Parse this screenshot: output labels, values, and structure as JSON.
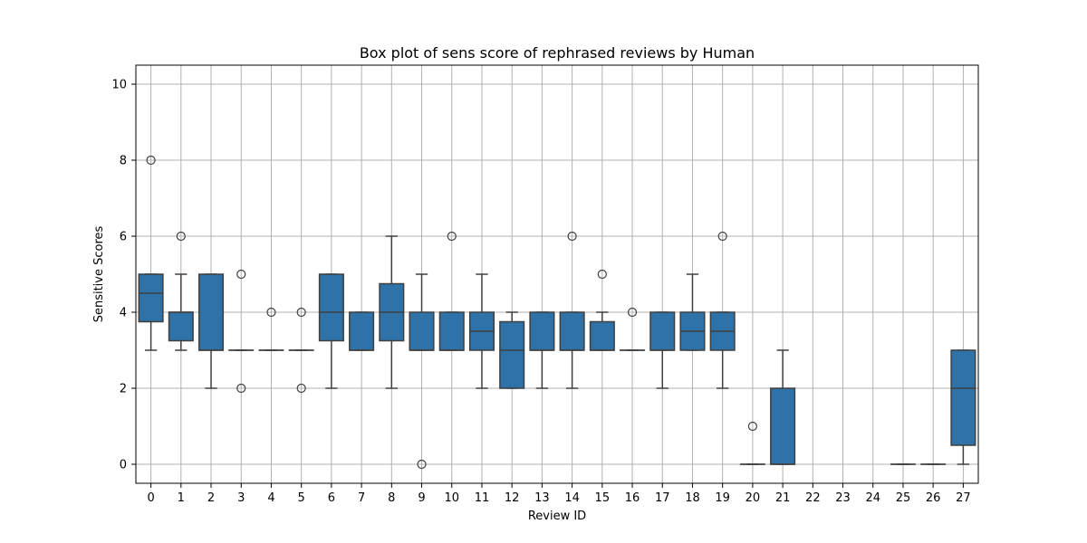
{
  "chart_data": {
    "type": "box",
    "title": "Box plot of sens score of rephrased reviews by Human",
    "xlabel": "Review ID",
    "ylabel": "Sensitive Scores",
    "ylim": [
      -0.5,
      10.5
    ],
    "yticks": [
      0,
      2,
      4,
      6,
      8,
      10
    ],
    "grid": true,
    "box_color": "#2f72a8",
    "categories": [
      "0",
      "1",
      "2",
      "3",
      "4",
      "5",
      "6",
      "7",
      "8",
      "9",
      "10",
      "11",
      "12",
      "13",
      "14",
      "15",
      "16",
      "17",
      "18",
      "19",
      "20",
      "21",
      "22",
      "23",
      "24",
      "25",
      "26",
      "27"
    ],
    "boxes": [
      {
        "q1": 3.75,
        "median": 4.5,
        "q3": 5,
        "whisker_low": 3,
        "whisker_high": 5,
        "outliers": [
          8
        ]
      },
      {
        "q1": 3.25,
        "median": 4,
        "q3": 4,
        "whisker_low": 3,
        "whisker_high": 5,
        "outliers": [
          6
        ]
      },
      {
        "q1": 3,
        "median": 3,
        "q3": 5,
        "whisker_low": 2,
        "whisker_high": 5,
        "outliers": []
      },
      {
        "q1": 3,
        "median": 3,
        "q3": 3,
        "whisker_low": 3,
        "whisker_high": 3,
        "outliers": [
          5,
          2
        ]
      },
      {
        "q1": 3,
        "median": 3,
        "q3": 3,
        "whisker_low": 3,
        "whisker_high": 3,
        "outliers": [
          4
        ]
      },
      {
        "q1": 3,
        "median": 3,
        "q3": 3,
        "whisker_low": 3,
        "whisker_high": 3,
        "outliers": [
          4,
          2
        ]
      },
      {
        "q1": 3.25,
        "median": 4,
        "q3": 5,
        "whisker_low": 2,
        "whisker_high": 5,
        "outliers": []
      },
      {
        "q1": 3,
        "median": 3,
        "q3": 4,
        "whisker_low": 3,
        "whisker_high": 4,
        "outliers": []
      },
      {
        "q1": 3.25,
        "median": 4,
        "q3": 4.75,
        "whisker_low": 2,
        "whisker_high": 6,
        "outliers": []
      },
      {
        "q1": 3,
        "median": 3,
        "q3": 4,
        "whisker_low": 3,
        "whisker_high": 5,
        "outliers": [
          0
        ]
      },
      {
        "q1": 3,
        "median": 3,
        "q3": 4,
        "whisker_low": 3,
        "whisker_high": 4,
        "outliers": [
          6
        ]
      },
      {
        "q1": 3,
        "median": 3.5,
        "q3": 4,
        "whisker_low": 2,
        "whisker_high": 5,
        "outliers": []
      },
      {
        "q1": 2,
        "median": 3,
        "q3": 3.75,
        "whisker_low": 2,
        "whisker_high": 4,
        "outliers": []
      },
      {
        "q1": 3,
        "median": 3,
        "q3": 4,
        "whisker_low": 2,
        "whisker_high": 4,
        "outliers": []
      },
      {
        "q1": 3,
        "median": 3,
        "q3": 4,
        "whisker_low": 2,
        "whisker_high": 4,
        "outliers": [
          6
        ]
      },
      {
        "q1": 3,
        "median": 3,
        "q3": 3.75,
        "whisker_low": 3,
        "whisker_high": 4,
        "outliers": [
          5
        ]
      },
      {
        "q1": 3,
        "median": 3,
        "q3": 3,
        "whisker_low": 3,
        "whisker_high": 3,
        "outliers": [
          4
        ]
      },
      {
        "q1": 3,
        "median": 3,
        "q3": 4,
        "whisker_low": 2,
        "whisker_high": 4,
        "outliers": []
      },
      {
        "q1": 3,
        "median": 3.5,
        "q3": 4,
        "whisker_low": 3,
        "whisker_high": 5,
        "outliers": []
      },
      {
        "q1": 3,
        "median": 3.5,
        "q3": 4,
        "whisker_low": 2,
        "whisker_high": 4,
        "outliers": [
          6
        ]
      },
      {
        "q1": 0,
        "median": 0,
        "q3": 0,
        "whisker_low": 0,
        "whisker_high": 0,
        "outliers": [
          1
        ]
      },
      {
        "q1": 0,
        "median": 0,
        "q3": 2,
        "whisker_low": 0,
        "whisker_high": 3,
        "outliers": []
      },
      null,
      null,
      null,
      {
        "q1": 0,
        "median": 0,
        "q3": 0,
        "whisker_low": 0,
        "whisker_high": 0,
        "outliers": []
      },
      {
        "q1": 0,
        "median": 0,
        "q3": 0,
        "whisker_low": 0,
        "whisker_high": 0,
        "outliers": []
      },
      {
        "q1": 0.5,
        "median": 2,
        "q3": 3,
        "whisker_low": 0,
        "whisker_high": 3,
        "outliers": []
      }
    ]
  }
}
